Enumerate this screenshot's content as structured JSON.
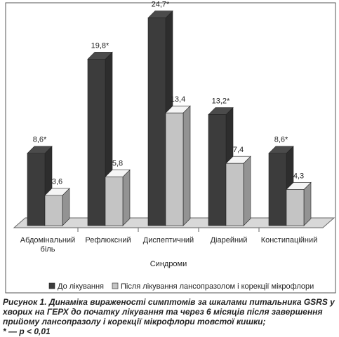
{
  "chart_data": {
    "type": "bar3d",
    "xlabel": "Синдроми",
    "categories": [
      "Абдомінальний біль",
      "Рефлюксний",
      "Диспептичний",
      "Діарейний",
      "Констипаційний"
    ],
    "series": [
      {
        "name": "До лікування",
        "color": "#3c3c3c",
        "values": [
          8.6,
          19.8,
          24.7,
          13.2,
          8.6
        ],
        "value_labels": [
          "8,6*",
          "19,8*",
          "24,7*",
          "13,2*",
          "8,6*"
        ]
      },
      {
        "name": "Після лікування лансопразолом і корекції мікрофлори",
        "color": "#c4c4c4",
        "values": [
          3.6,
          5.8,
          13.4,
          7.4,
          4.3
        ],
        "value_labels": [
          "3,6",
          "5,8",
          "13,4",
          "7,4",
          "4,3"
        ]
      }
    ],
    "ylim": [
      0,
      26
    ],
    "caption": "Рисунок 1. Динаміка вираженості симптомів за шкалами питальника GSRS у хворих на ГЕРХ до початку лікування та через 6 місяців після завершення прийому лансопразолу і корекції мікрофлори товстої кишки;",
    "footnote": "* — p < 0,01"
  }
}
